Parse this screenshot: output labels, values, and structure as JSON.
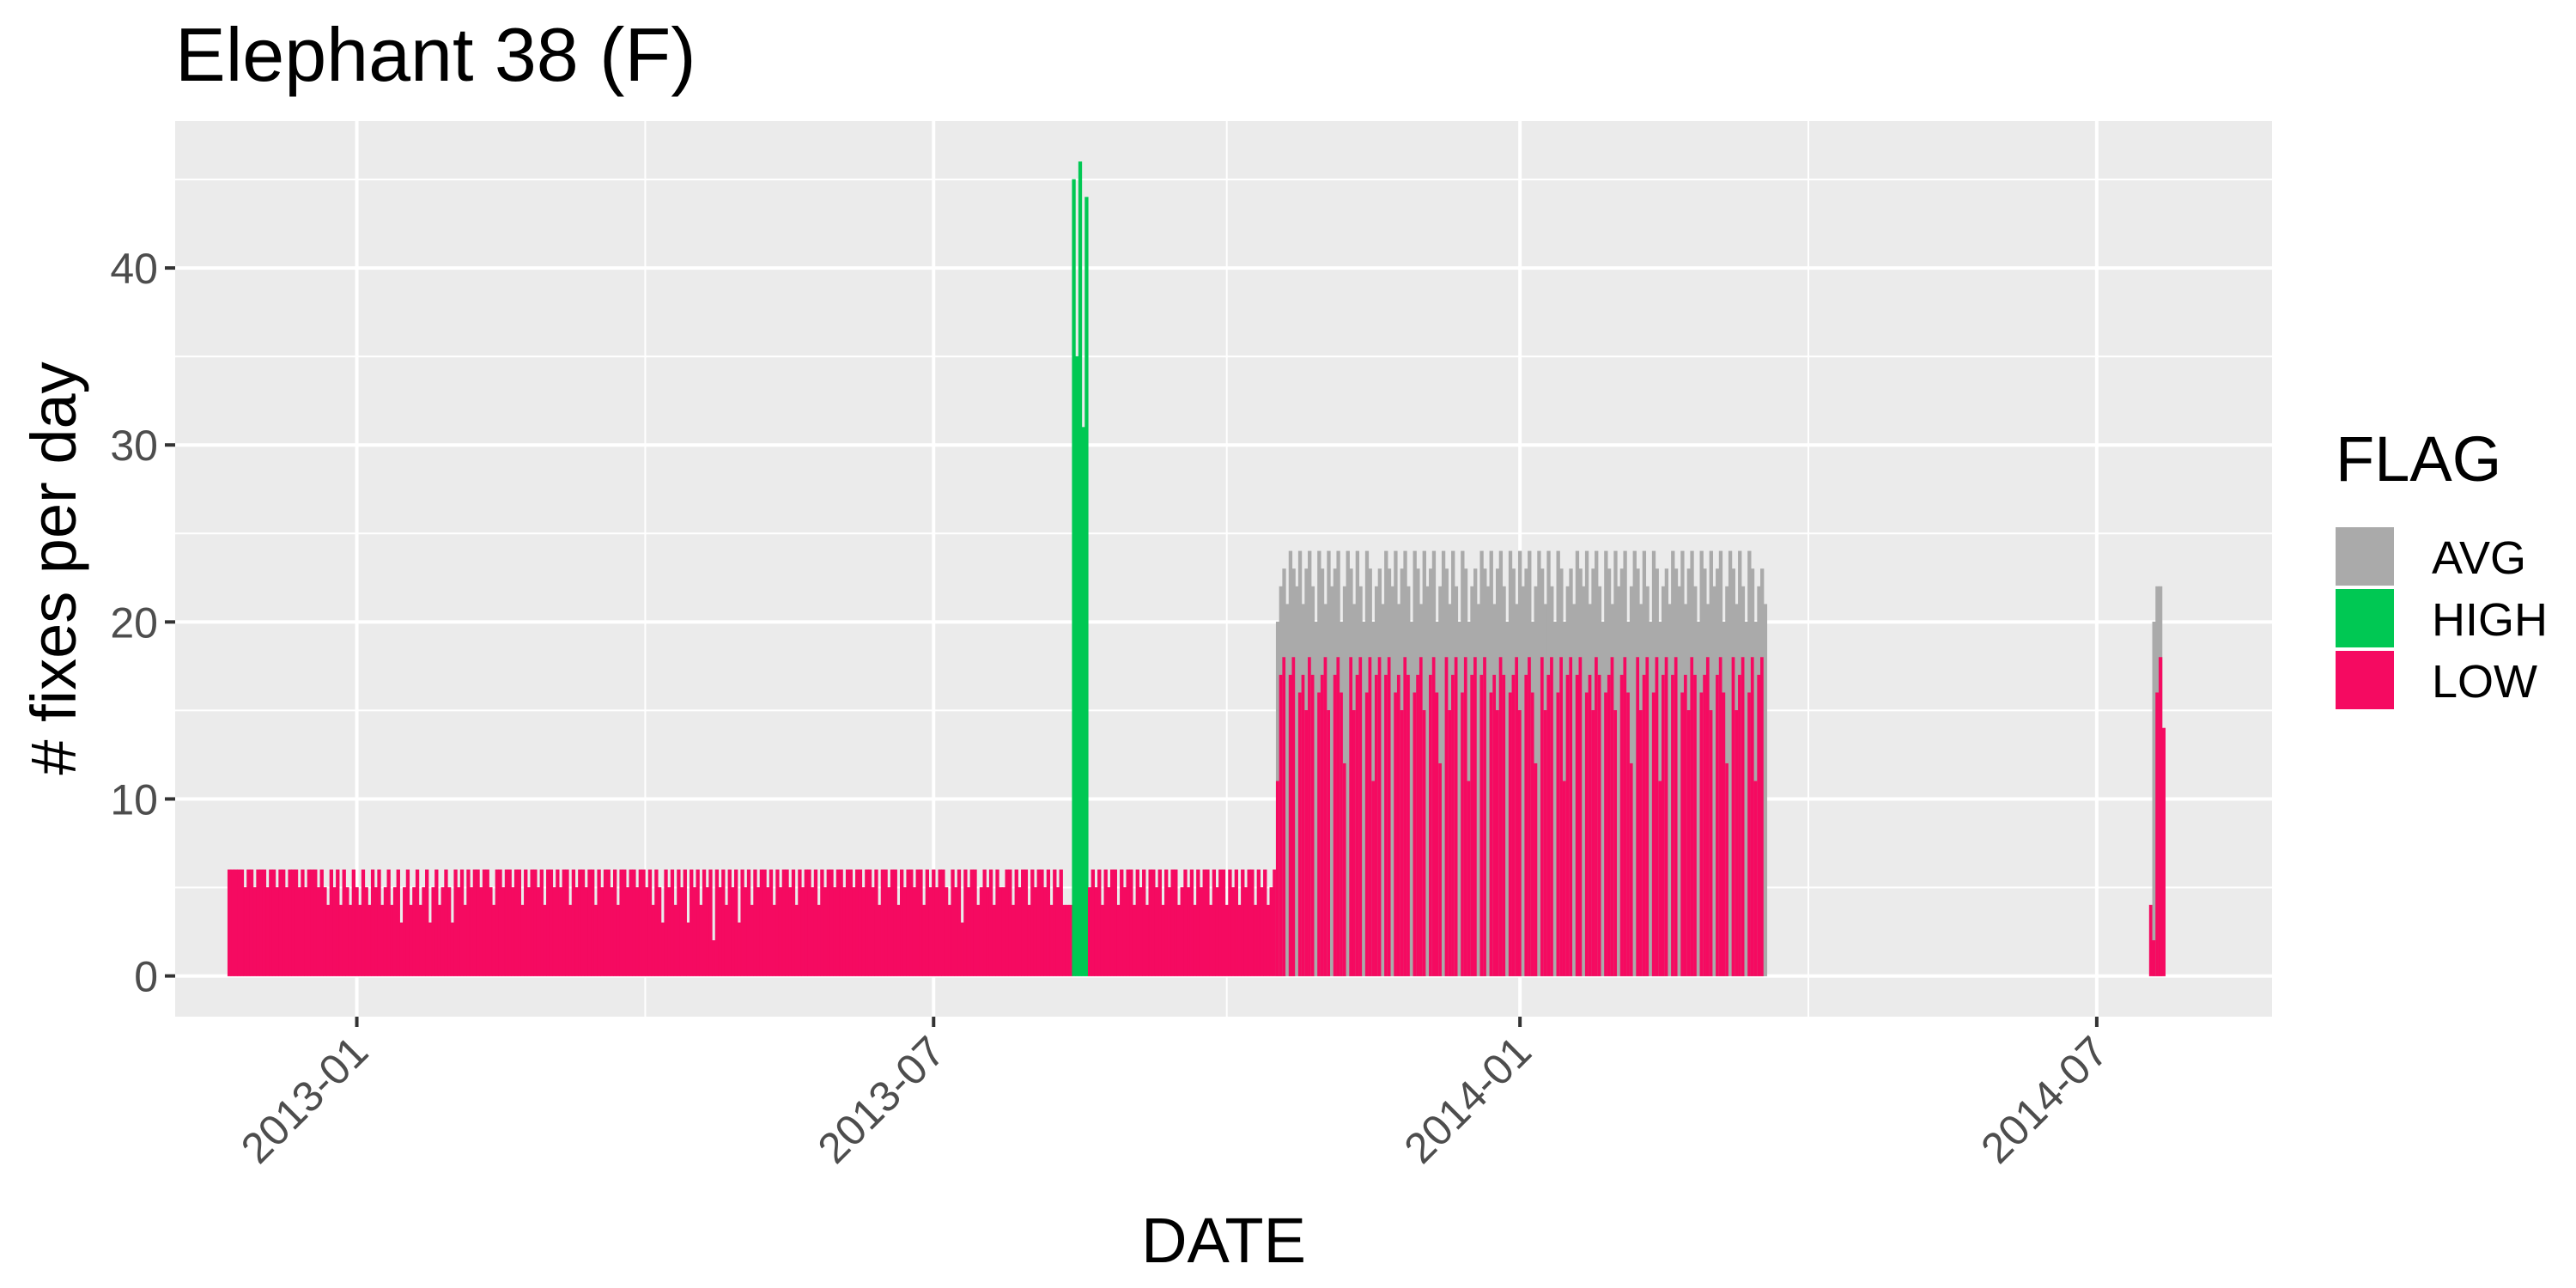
{
  "chart_data": {
    "type": "bar",
    "title": "Elephant 38 (F)",
    "xlabel": "DATE",
    "ylabel": "# fixes per day",
    "xlim": [
      "2012-11-05",
      "2014-08-25"
    ],
    "ylim": [
      -2.3,
      48.3
    ],
    "y_ticks": [
      0,
      10,
      20,
      30,
      40
    ],
    "x_ticks": [
      "2013-01",
      "2013-07",
      "2014-01",
      "2014-07"
    ],
    "grid": true,
    "legend": {
      "title": "FLAG",
      "position": "right",
      "items": [
        {
          "name": "AVG",
          "color": "#aaaaaa"
        },
        {
          "name": "HIGH",
          "color": "#00c853"
        },
        {
          "name": "LOW",
          "color": "#f50a61"
        }
      ]
    },
    "segments": [
      {
        "start": "2012-11-22",
        "end": "2012-12-28",
        "low": [
          6,
          6,
          6,
          6,
          6,
          5,
          6,
          6,
          5,
          6,
          6,
          6,
          5,
          6,
          6,
          5,
          6,
          6,
          5,
          6,
          6,
          6,
          5,
          6,
          5,
          6,
          6,
          6,
          5,
          6,
          5,
          4,
          6,
          5,
          6,
          4,
          6
        ]
      },
      {
        "start": "2012-12-29",
        "end": "2013-01-31",
        "low": [
          5,
          4,
          6,
          5,
          4,
          6,
          5,
          4,
          6,
          5,
          6,
          4,
          5,
          6,
          4,
          5,
          6,
          3,
          5,
          6,
          4,
          5,
          6,
          4,
          5,
          6,
          3,
          5,
          6,
          4,
          5,
          6,
          5,
          3
        ]
      },
      {
        "start": "2013-02-01",
        "end": "2013-03-31",
        "low": [
          6,
          5,
          6,
          4,
          6,
          5,
          6,
          6,
          5,
          6,
          6,
          5,
          4,
          6,
          6,
          5,
          6,
          6,
          5,
          6,
          6,
          4,
          6,
          5,
          6,
          6,
          5,
          6,
          4,
          6,
          6,
          5,
          6,
          5,
          6,
          6,
          4,
          6,
          5,
          6,
          6,
          5,
          6,
          6,
          4,
          6,
          5,
          6,
          6,
          5,
          6,
          4,
          6,
          6,
          5,
          6,
          6,
          5,
          6
        ]
      },
      {
        "start": "2013-04-01",
        "end": "2013-05-31",
        "low": [
          6,
          5,
          6,
          4,
          6,
          5,
          3,
          6,
          5,
          6,
          4,
          6,
          5,
          6,
          3,
          6,
          5,
          6,
          4,
          6,
          5,
          6,
          2,
          6,
          5,
          6,
          4,
          6,
          5,
          6,
          3,
          6,
          5,
          6,
          4,
          6,
          5,
          6,
          6,
          5,
          6,
          4,
          6,
          5,
          6,
          6,
          5,
          6,
          4,
          6,
          5,
          6,
          6,
          5,
          6,
          4,
          6,
          5,
          6,
          6,
          5
        ]
      },
      {
        "start": "2013-06-01",
        "end": "2013-08-13",
        "low": [
          6,
          6,
          5,
          6,
          6,
          5,
          6,
          6,
          5,
          6,
          6,
          5,
          6,
          4,
          6,
          6,
          5,
          6,
          6,
          4,
          6,
          5,
          6,
          6,
          5,
          6,
          6,
          4,
          6,
          5,
          6,
          5,
          6,
          6,
          5,
          4,
          6,
          5,
          6,
          3,
          6,
          5,
          6,
          6,
          4,
          5,
          6,
          5,
          6,
          4,
          6,
          5,
          5,
          6,
          6,
          4,
          6,
          5,
          6,
          6,
          4,
          6,
          5,
          6,
          6,
          5,
          6,
          4,
          6,
          5,
          6,
          4,
          4,
          4
        ]
      },
      {
        "start": "2013-08-14",
        "end": "2013-08-18",
        "high": [
          45,
          35,
          46,
          31,
          44
        ]
      },
      {
        "start": "2013-08-19",
        "end": "2013-10-16",
        "low": [
          5,
          6,
          5,
          6,
          4,
          6,
          5,
          6,
          6,
          4,
          6,
          5,
          6,
          6,
          4,
          6,
          5,
          6,
          4,
          6,
          6,
          5,
          6,
          4,
          6,
          5,
          6,
          6,
          4,
          5,
          6,
          5,
          6,
          4,
          6,
          5,
          6,
          6,
          4,
          6,
          5,
          6,
          6,
          4,
          6,
          5,
          6,
          4,
          6,
          5,
          6,
          6,
          4,
          6,
          5,
          6,
          4,
          5,
          6
        ]
      },
      {
        "start": "2013-10-17",
        "end": "2014-03-19",
        "avg": [
          20,
          22,
          23,
          21,
          24,
          23,
          22,
          24,
          21,
          23,
          24,
          22,
          20,
          24,
          23,
          21,
          24,
          22,
          23,
          24,
          20,
          22,
          24,
          23,
          21,
          24,
          22,
          20,
          24,
          23
        ],
        "low": [
          11,
          17,
          18,
          0,
          17,
          18,
          0,
          16,
          17,
          15,
          18,
          17,
          0,
          16,
          17,
          18,
          15,
          0,
          17,
          18,
          16,
          12,
          0,
          18,
          15,
          17,
          18,
          0,
          16,
          18
        ]
      }
    ],
    "tail": {
      "x": [
        "2014-07-18",
        "2014-07-19",
        "2014-07-20",
        "2014-07-21",
        "2014-07-22"
      ],
      "avg": [
        0,
        20,
        22,
        22,
        0
      ],
      "low": [
        4,
        2,
        16,
        18,
        14
      ]
    }
  }
}
